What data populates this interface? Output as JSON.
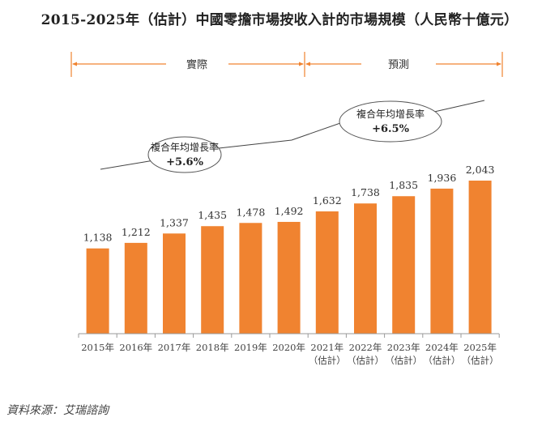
{
  "chart_data": {
    "type": "bar",
    "title": "2015-2025年（估計）中國零擔市場按收入計的市場規模（人民幣十億元）",
    "categories": [
      "2015年",
      "2016年",
      "2017年",
      "2018年",
      "2019年",
      "2020年",
      "2021年",
      "2022年",
      "2023年",
      "2024年",
      "2025年"
    ],
    "category_sublabels": [
      "",
      "",
      "",
      "",
      "",
      "",
      "（估計）",
      "（估計）",
      "（估計）",
      "（估計）",
      "（估計）"
    ],
    "values": [
      1138,
      1212,
      1337,
      1435,
      1478,
      1492,
      1632,
      1738,
      1835,
      1936,
      2043
    ],
    "value_labels": [
      "1,138",
      "1,212",
      "1,337",
      "1,435",
      "1,478",
      "1,492",
      "1,632",
      "1,738",
      "1,835",
      "1,936",
      "2,043"
    ],
    "ylim": [
      0,
      2043
    ],
    "grid": false,
    "bar_color": "#F08330",
    "periods": [
      {
        "label": "實際",
        "from": "2015年",
        "to": "2020年"
      },
      {
        "label": "預測",
        "from": "2020年",
        "to": "2025年"
      }
    ],
    "period_color": "#F08330",
    "cagr_annotations": [
      {
        "label": "複合年均增長率",
        "value": "+5.6%"
      },
      {
        "label": "複合年均增長率",
        "value": "+6.5%"
      }
    ],
    "source": "資料來源：艾瑞諮詢"
  }
}
